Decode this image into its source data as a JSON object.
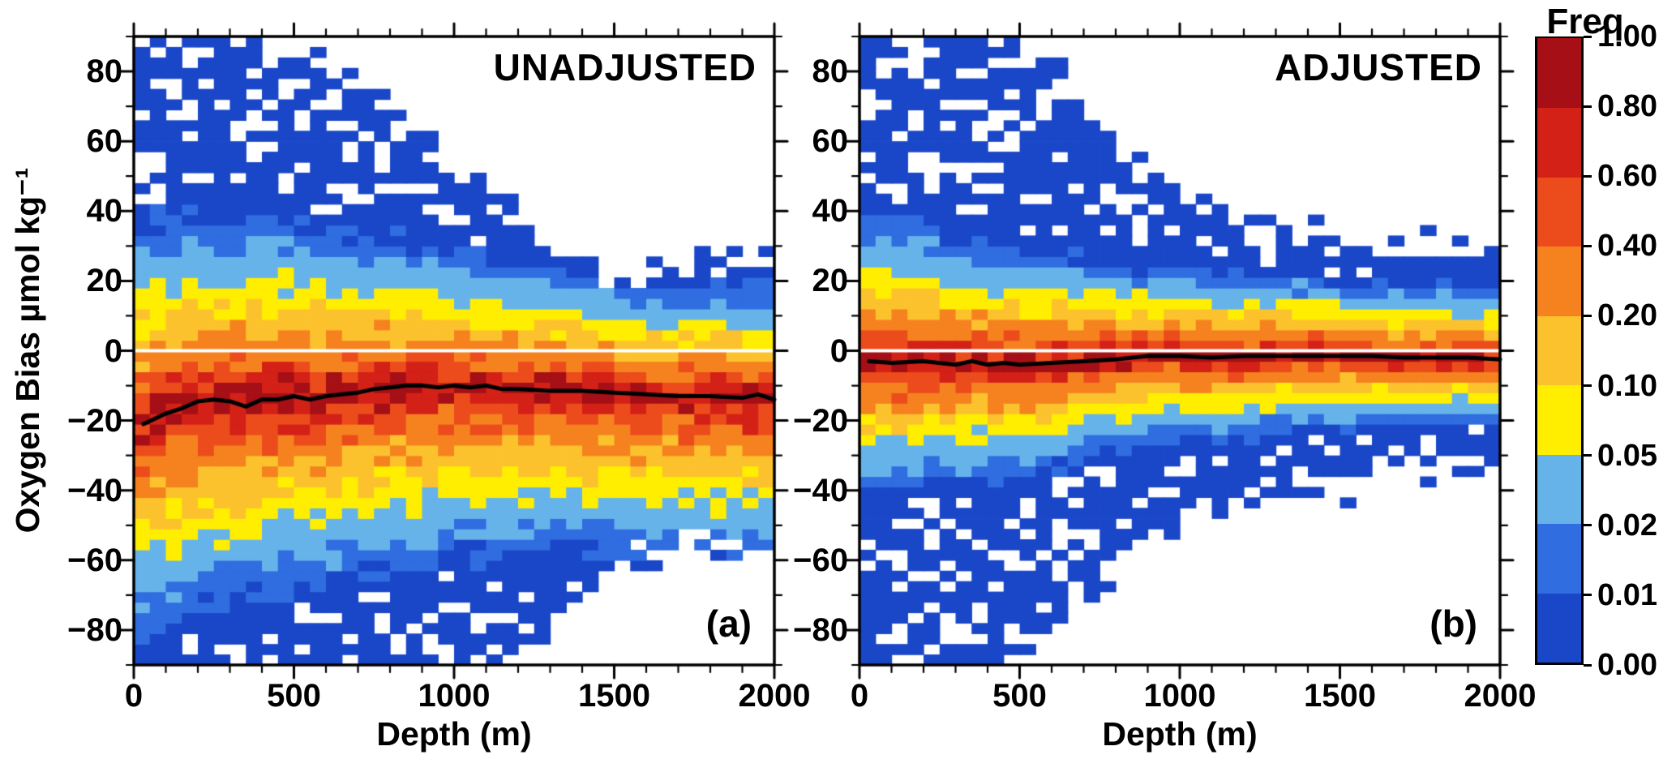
{
  "chart_data": {
    "type": "heatmap",
    "x_label": "Depth (m)",
    "y_label": "Oxygen Bias µmol kg⁻¹",
    "x_axis": {
      "min": 0,
      "max": 2000,
      "major_ticks": [
        0,
        500,
        1000,
        1500,
        2000
      ],
      "major_tick_labels": [
        "0",
        "500",
        "1000",
        "1500",
        "2000"
      ],
      "minor_tick_step": 100
    },
    "y_axis": {
      "min": -90,
      "max": 90,
      "major_ticks": [
        -80,
        -60,
        -40,
        -20,
        0,
        20,
        40,
        60,
        80
      ],
      "major_tick_labels": [
        "−80",
        "−60",
        "−40",
        "−20",
        "0",
        "20",
        "40",
        "60",
        "80"
      ],
      "minor_tick_step": 10
    },
    "bin_size": {
      "depth_m": 50,
      "bias": 3
    },
    "zero_line_color": "#ffffff",
    "median_line_color": "#000000",
    "colorbar": {
      "title": "Freq",
      "levels": [
        0.0,
        0.01,
        0.02,
        0.05,
        0.1,
        0.2,
        0.4,
        0.6,
        0.8,
        1.0
      ],
      "level_labels": [
        "0.00",
        "0.01",
        "0.02",
        "0.05",
        "0.10",
        "0.20",
        "0.40",
        "0.60",
        "0.80",
        "1.00"
      ],
      "colors": [
        "#1a47c8",
        "#2f6de0",
        "#66b3ea",
        "#ffee00",
        "#fcc22d",
        "#f5821f",
        "#ec4c1c",
        "#d32117",
        "#a50f15"
      ]
    },
    "panels": [
      {
        "letter": "(a)",
        "title": "UNADJUSTED",
        "median_line": {
          "depth": [
            30,
            100,
            150,
            200,
            250,
            300,
            350,
            400,
            450,
            500,
            550,
            600,
            650,
            700,
            750,
            800,
            850,
            900,
            950,
            1000,
            1050,
            1100,
            1150,
            1200,
            1300,
            1400,
            1500,
            1600,
            1700,
            1800,
            1900,
            1950,
            2000
          ],
          "bias": [
            -21,
            -18,
            -16.5,
            -14.5,
            -14,
            -14.5,
            -16,
            -14,
            -14,
            -13,
            -14,
            -13,
            -12.5,
            -12,
            -11,
            -10.5,
            -10,
            -10,
            -10.5,
            -10,
            -10.5,
            -10,
            -11,
            -11,
            -11.5,
            -11.5,
            -12,
            -12.5,
            -13,
            -13,
            -13.5,
            -12.5,
            -14
          ]
        },
        "distribution": {
          "depth_nodes": [
            0,
            100,
            200,
            300,
            400,
            500,
            600,
            700,
            800,
            900,
            1000,
            1100,
            1200,
            1300,
            1400,
            1500,
            1600,
            1700,
            1800,
            1900,
            2000
          ],
          "center": [
            -21,
            -18,
            -14.5,
            -14.5,
            -14,
            -13,
            -13,
            -12,
            -10.5,
            -10.5,
            -10,
            -10.5,
            -11,
            -11.5,
            -11.5,
            -12,
            -12.5,
            -13,
            -13,
            -13.5,
            -14
          ],
          "sigma_up": [
            12,
            12,
            11.5,
            11.5,
            11,
            11,
            10.5,
            10,
            9.5,
            9,
            8.5,
            8,
            8,
            7.5,
            7.5,
            7,
            7,
            7,
            7,
            7,
            7
          ],
          "sigma_dn": [
            13,
            13,
            12.5,
            12.5,
            12,
            12,
            11.5,
            11.5,
            11,
            11,
            10.5,
            10.5,
            10,
            10,
            10,
            10,
            10,
            10,
            10,
            10,
            10
          ],
          "extent_up": [
            95,
            95,
            95,
            95,
            92,
            90,
            85,
            78,
            70,
            62,
            52,
            45,
            38,
            32,
            26,
            22,
            22,
            24,
            26,
            28,
            26
          ],
          "extent_dn": [
            -95,
            -95,
            -95,
            -95,
            -95,
            -95,
            -95,
            -95,
            -92,
            -92,
            -90,
            -88,
            -85,
            -78,
            -68,
            -62,
            -60,
            -58,
            -56,
            -55,
            -55
          ]
        }
      },
      {
        "letter": "(b)",
        "title": "ADJUSTED",
        "median_line": {
          "depth": [
            30,
            100,
            200,
            300,
            350,
            400,
            450,
            500,
            600,
            700,
            800,
            900,
            1000,
            1100,
            1200,
            1300,
            1400,
            1500,
            1600,
            1700,
            1800,
            1900,
            2000
          ],
          "bias": [
            -3,
            -3.5,
            -3,
            -4,
            -3,
            -4,
            -3.5,
            -4,
            -3.5,
            -3,
            -2.5,
            -1.5,
            -1.5,
            -2,
            -1.5,
            -1.5,
            -1.5,
            -1.5,
            -1.5,
            -2,
            -2,
            -2,
            -2.5
          ]
        },
        "distribution": {
          "depth_nodes": [
            0,
            100,
            200,
            300,
            400,
            500,
            600,
            700,
            800,
            900,
            1000,
            1100,
            1200,
            1300,
            1400,
            1500,
            1600,
            1700,
            1800,
            1900,
            2000
          ],
          "center": [
            -3,
            -3.5,
            -3,
            -4,
            -3.5,
            -4,
            -3.5,
            -3,
            -2.5,
            -1.5,
            -1.5,
            -2,
            -1.5,
            -1.5,
            -1.5,
            -1.5,
            -1.5,
            -2,
            -2,
            -2,
            -2.5
          ],
          "sigma_up": [
            9,
            9,
            8.5,
            8,
            7.5,
            7,
            7,
            6.5,
            6,
            5.5,
            5.5,
            5,
            5,
            5,
            5,
            4.5,
            4.5,
            4.5,
            4.5,
            4.5,
            4.5
          ],
          "sigma_dn": [
            8,
            8,
            7.5,
            7.5,
            7,
            7,
            6.5,
            6,
            5.5,
            5.5,
            5,
            5,
            5,
            4.5,
            4.5,
            4.5,
            4.5,
            4,
            4,
            4,
            4
          ],
          "extent_up": [
            95,
            95,
            95,
            92,
            90,
            88,
            82,
            72,
            62,
            55,
            48,
            42,
            38,
            35,
            33,
            32,
            30,
            30,
            30,
            30,
            28
          ],
          "extent_dn": [
            -95,
            -95,
            -95,
            -92,
            -90,
            -85,
            -80,
            -72,
            -65,
            -58,
            -52,
            -48,
            -45,
            -43,
            -42,
            -40,
            -38,
            -36,
            -35,
            -34,
            -34
          ]
        }
      }
    ]
  }
}
